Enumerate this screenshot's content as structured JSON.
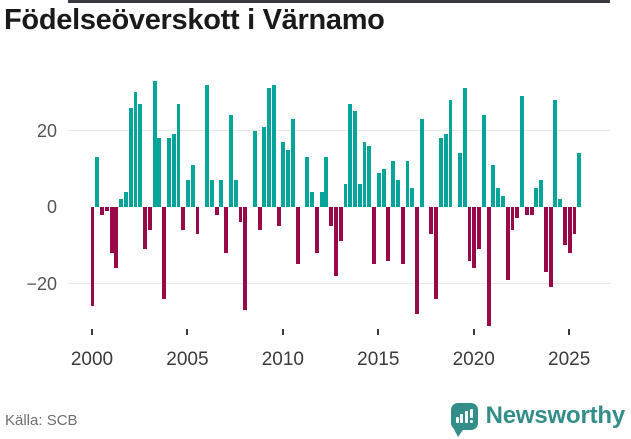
{
  "title": "Födelseöverskott i Värnamo",
  "source": {
    "label": "Källa: SCB"
  },
  "branding": {
    "name": "Newsworthy",
    "icon": "newsworthy-speech-bubble-bar-chart-icon"
  },
  "colors": {
    "positive_bar": "#07a49b",
    "negative_bar": "#970948",
    "axis_line": "#3a3a41",
    "gridline": "#e7e7e7",
    "brand": "#338e8a",
    "title_text": "#1a1a1a",
    "y_label_text": "#555555",
    "x_label_text": "#3b3b3b",
    "source_text": "#6f6f6f"
  },
  "axes": {
    "y_ticks": [
      {
        "label": "20",
        "value": 20
      },
      {
        "label": "0",
        "value": 0
      },
      {
        "label": "−20",
        "value": -20
      }
    ],
    "x_ticks": [
      {
        "label": "2000",
        "year": 2000
      },
      {
        "label": "2005",
        "year": 2005
      },
      {
        "label": "2010",
        "year": 2010
      },
      {
        "label": "2015",
        "year": 2015
      },
      {
        "label": "2020",
        "year": 2020
      },
      {
        "label": "2025",
        "year": 2025
      }
    ]
  },
  "chart_data": {
    "type": "bar",
    "title": "Födelseöverskott i Värnamo",
    "frequency": "quarterly",
    "start_period": "2000Q1",
    "end_period": "2025Q3",
    "xlabel": "",
    "ylabel": "",
    "ylim": [
      -33,
      36
    ],
    "grid": "horizontal lines at 20 and -20",
    "legend_position": "none",
    "positive_color": "#07a49b",
    "negative_color": "#970948",
    "values": [
      -26,
      13,
      -2,
      -1,
      -12,
      -16,
      2,
      4,
      26,
      30,
      27,
      -11,
      -6,
      33,
      18,
      -24,
      18,
      19,
      27,
      -6,
      7,
      11,
      -7,
      0,
      32,
      7,
      -2,
      7,
      -12,
      24,
      7,
      -4,
      -27,
      0,
      20,
      -6,
      21,
      31,
      32,
      -5,
      17,
      15,
      23,
      -15,
      0,
      13,
      4,
      -12,
      4,
      13,
      -5,
      -18,
      -9,
      6,
      27,
      25,
      6,
      17,
      16,
      -15,
      9,
      10,
      -14,
      12,
      7,
      -15,
      12,
      5,
      -28,
      23,
      0,
      -7,
      -24,
      18,
      19,
      28,
      0,
      14,
      31,
      -14,
      -16,
      -11,
      24,
      -31,
      11,
      5,
      3,
      -19,
      -6,
      -3,
      29,
      -2,
      -2,
      5,
      7,
      -17,
      -21,
      28,
      2,
      -10,
      -12,
      -7,
      14
    ]
  }
}
